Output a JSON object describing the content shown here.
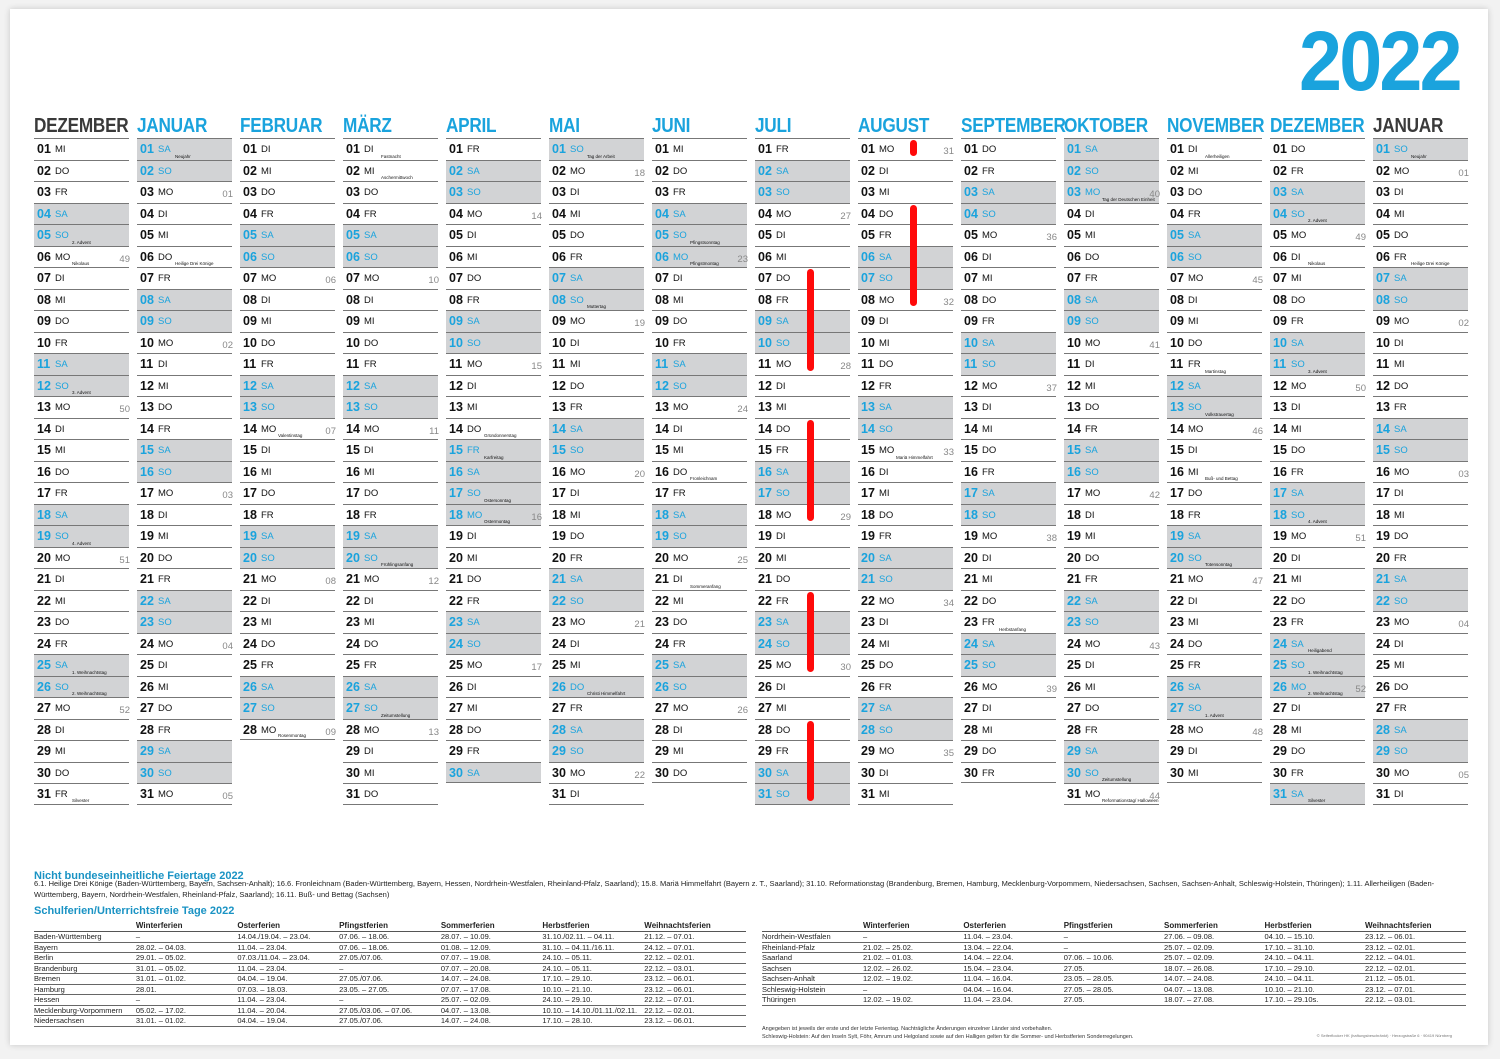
{
  "year": "2022",
  "accent_color": "#1aa3dd",
  "weekend_bg": "#d2d3d5",
  "weekday_names": [
    "MO",
    "DI",
    "MI",
    "DO",
    "FR",
    "SA",
    "SO"
  ],
  "months": [
    {
      "name": "DEZEMBER",
      "days": 31,
      "first_weekday": 2,
      "grey": true,
      "kw": {
        "6": "49",
        "13": "50",
        "20": "51",
        "27": "52"
      },
      "holidays": {
        "5": "2. Advent",
        "6": "Nikolaus",
        "12": "3. Advent",
        "19": "4. Advent",
        "25": "1. Weihnachtstag",
        "26": "2. Weihnachtstag",
        "31": "Silvester"
      }
    },
    {
      "name": "JANUAR",
      "days": 31,
      "first_weekday": 5,
      "grey": false,
      "kw": {
        "3": "01",
        "10": "02",
        "17": "03",
        "24": "04",
        "31": "05"
      },
      "holidays": {
        "1": "Neujahr",
        "6": "Heilige Drei Könige"
      }
    },
    {
      "name": "FEBRUAR",
      "days": 28,
      "first_weekday": 1,
      "grey": false,
      "kw": {
        "7": "06",
        "14": "07",
        "21": "08",
        "28": "09"
      },
      "holidays": {
        "14": "Valentinstag",
        "28": "Rosenmontag"
      }
    },
    {
      "name": "MÄRZ",
      "days": 31,
      "first_weekday": 1,
      "grey": false,
      "kw": {
        "7": "10",
        "14": "11",
        "21": "12",
        "28": "13"
      },
      "holidays": {
        "1": "Fastnacht",
        "2": "Aschermittwoch",
        "20": "Frühlingsanfang",
        "27": "Zeitumstellung"
      }
    },
    {
      "name": "APRIL",
      "days": 30,
      "first_weekday": 4,
      "grey": false,
      "kw": {
        "4": "14",
        "11": "15",
        "18": "16",
        "25": "17"
      },
      "holidays": {
        "14": "Gründonnerstag",
        "15": "Karfreitag",
        "17": "Ostersonntag",
        "18": "Ostermontag"
      }
    },
    {
      "name": "MAI",
      "days": 31,
      "first_weekday": 6,
      "grey": false,
      "kw": {
        "2": "18",
        "9": "19",
        "16": "20",
        "23": "21",
        "30": "22"
      },
      "holidays": {
        "1": "Tag der Arbeit",
        "8": "Muttertag",
        "26": "Christi Himmelfahrt"
      }
    },
    {
      "name": "JUNI",
      "days": 30,
      "first_weekday": 2,
      "grey": false,
      "kw": {
        "6": "23",
        "13": "24",
        "20": "25",
        "27": "26"
      },
      "holidays": {
        "5": "Pfingstsonntag",
        "6": "Pfingstmontag",
        "16": "Fronleichnam",
        "21": "Sommeranfang"
      }
    },
    {
      "name": "JULI",
      "days": 31,
      "first_weekday": 4,
      "grey": false,
      "kw": {
        "4": "27",
        "11": "28",
        "18": "29",
        "25": "30"
      },
      "holidays": {}
    },
    {
      "name": "AUGUST",
      "days": 31,
      "first_weekday": 0,
      "grey": false,
      "kw": {
        "1": "31",
        "8": "32",
        "15": "33",
        "22": "34",
        "29": "35"
      },
      "holidays": {
        "15": "Mariä Himmelfahrt"
      }
    },
    {
      "name": "SEPTEMBER",
      "days": 30,
      "first_weekday": 3,
      "grey": false,
      "kw": {
        "5": "36",
        "12": "37",
        "19": "38",
        "26": "39"
      },
      "holidays": {
        "23": "Herbstanfang"
      }
    },
    {
      "name": "OKTOBER",
      "days": 31,
      "first_weekday": 5,
      "grey": false,
      "kw": {
        "3": "40",
        "10": "41",
        "17": "42",
        "24": "43",
        "31": "44"
      },
      "holidays": {
        "3": "Tag der Deutschen Einheit",
        "30": "Zeitumstellung",
        "31": "Reformationstag/ Halloween"
      }
    },
    {
      "name": "NOVEMBER",
      "days": 30,
      "first_weekday": 1,
      "grey": false,
      "kw": {
        "7": "45",
        "14": "46",
        "21": "47",
        "28": "48"
      },
      "holidays": {
        "1": "Allerheiligen",
        "11": "Martinstag",
        "13": "Volkstrauertag",
        "16": "Buß- und Bettag",
        "20": "Totensonntag",
        "27": "1. Advent"
      }
    },
    {
      "name": "DEZEMBER",
      "days": 31,
      "first_weekday": 3,
      "grey": false,
      "kw": {
        "5": "49",
        "12": "50",
        "19": "51",
        "26": "52"
      },
      "holidays": {
        "4": "2. Advent",
        "6": "Nikolaus",
        "11": "3. Advent",
        "18": "4. Advent",
        "24": "Heiligabend",
        "25": "1. Weihnachtstag",
        "26": "2. Weihnachtstag",
        "31": "Silvester"
      }
    },
    {
      "name": "JANUAR",
      "days": 31,
      "first_weekday": 6,
      "grey": true,
      "kw": {
        "2": "01",
        "9": "02",
        "16": "03",
        "23": "04",
        "30": "05"
      },
      "holidays": {
        "1": "Neujahr",
        "6": "Heilige Drei Könige"
      }
    }
  ],
  "red_marks": [
    {
      "month": 8,
      "from": 1,
      "to": 1
    },
    {
      "month": 8,
      "from": 4,
      "to": 8
    },
    {
      "month": 7,
      "from": 7,
      "to": 11
    },
    {
      "month": 7,
      "from": 14,
      "to": 18
    },
    {
      "month": 7,
      "from": 22,
      "to": 25
    },
    {
      "month": 7,
      "from": 28,
      "to": 31
    }
  ],
  "feiertage": {
    "title": "Nicht bundeseinheitliche Feiertage 2022",
    "text": "6.1. Heilige Drei Könige (Baden-Württemberg, Bayern, Sachsen-Anhalt); 16.6. Fronleichnam (Baden-Württemberg, Bayern, Hessen, Nordrhein-Westfalen, Rheinland-Pfalz, Saarland); 15.8. Mariä Himmelfahrt (Bayern z. T., Saarland); 31.10. Reformationstag (Brandenburg, Bremen, Hamburg, Mecklenburg-Vorpommern, Niedersachsen, Sachsen, Sachsen-Anhalt, Schleswig-Holstein, Thüringen); 1.11. Allerheiligen (Baden-Württemberg, Bayern, Nordrhein-Westfalen, Rheinland-Pfalz, Saarland); 16.11. Buß- und Bettag (Sachsen)"
  },
  "schulferien": {
    "title": "Schulferien/Unterrichtsfreie Tage 2022",
    "columns": [
      "",
      "Winterferien",
      "Osterferien",
      "Pfingstferien",
      "Sommerferien",
      "Herbstferien",
      "Weihnachtsferien"
    ],
    "left_rows": [
      [
        "Baden-Württemberg",
        "–",
        "14.04./19.04. – 23.04.",
        "07.06. – 18.06.",
        "28.07. – 10.09.",
        "31.10./02.11. – 04.11.",
        "21.12. – 07.01."
      ],
      [
        "Bayern",
        "28.02. – 04.03.",
        "11.04. – 23.04.",
        "07.06. – 18.06.",
        "01.08. – 12.09.",
        "31.10. – 04.11./16.11.",
        "24.12. – 07.01."
      ],
      [
        "Berlin",
        "29.01. – 05.02.",
        "07.03./11.04. – 23.04.",
        "27.05./07.06.",
        "07.07. – 19.08.",
        "24.10. – 05.11.",
        "22.12. – 02.01."
      ],
      [
        "Brandenburg",
        "31.01. – 05.02.",
        "11.04. – 23.04.",
        "–",
        "07.07. – 20.08.",
        "24.10. – 05.11.",
        "22.12. – 03.01."
      ],
      [
        "Bremen",
        "31.01. – 01.02.",
        "04.04. – 19.04.",
        "27.05./07.06.",
        "14.07. – 24.08.",
        "17.10. – 29.10.",
        "23.12. – 06.01."
      ],
      [
        "Hamburg",
        "28.01.",
        "07.03. – 18.03.",
        "23.05. – 27.05.",
        "07.07. – 17.08.",
        "10.10. – 21.10.",
        "23.12. – 06.01."
      ],
      [
        "Hessen",
        "–",
        "11.04. – 23.04.",
        "–",
        "25.07. – 02.09.",
        "24.10. – 29.10.",
        "22.12. – 07.01."
      ],
      [
        "Mecklenburg-Vorpommern",
        "05.02. – 17.02.",
        "11.04. – 20.04.",
        "27.05./03.06. – 07.06.",
        "04.07. – 13.08.",
        "10.10. – 14.10./01.11./02.11.",
        "22.12. – 02.01."
      ],
      [
        "Niedersachsen",
        "31.01. – 01.02.",
        "04.04. – 19.04.",
        "27.05./07.06.",
        "14.07. – 24.08.",
        "17.10. – 28.10.",
        "23.12. – 06.01."
      ]
    ],
    "right_rows": [
      [
        "Nordrhein-Westfalen",
        "–",
        "11.04. – 23.04.",
        "–",
        "27.06. – 09.08.",
        "04.10. – 15.10.",
        "23.12. – 06.01."
      ],
      [
        "Rheinland-Pfalz",
        "21.02. – 25.02.",
        "13.04. – 22.04.",
        "–",
        "25.07. – 02.09.",
        "17.10. – 31.10.",
        "23.12. – 02.01."
      ],
      [
        "Saarland",
        "21.02. – 01.03.",
        "14.04. – 22.04.",
        "07.06. – 10.06.",
        "25.07. – 02.09.",
        "24.10. – 04.11.",
        "22.12. – 04.01."
      ],
      [
        "Sachsen",
        "12.02. – 26.02.",
        "15.04. – 23.04.",
        "27.05.",
        "18.07. – 26.08.",
        "17.10. – 29.10.",
        "22.12. – 02.01."
      ],
      [
        "Sachsen-Anhalt",
        "12.02. – 19.02.",
        "11.04. – 16.04.",
        "23.05. – 28.05.",
        "14.07. – 24.08.",
        "24.10. – 04.11.",
        "21.12. – 05.01."
      ],
      [
        "Schleswig-Holstein",
        "–",
        "04.04. – 16.04.",
        "27.05. – 28.05.",
        "04.07. – 13.08.",
        "10.10. – 21.10.",
        "23.12. – 07.01."
      ],
      [
        "Thüringen",
        "12.02. – 19.02.",
        "11.04. – 23.04.",
        "27.05.",
        "18.07. – 27.08.",
        "17.10. – 29.10s.",
        "22.12. – 03.01."
      ]
    ]
  },
  "notes": {
    "line1": "Angegeben ist jeweils der erste und der letzte Ferientag. Nachträgliche Änderungen einzelner Länder sind vorbehalten.",
    "line2": "Schleswig-Holstein: Auf den Inseln Sylt, Föhr, Amrum und Helgoland sowie auf den Halligen gelten für die Sommer- und Herbstferien Sonderregelungen.",
    "copyright": "© Seiferflocker HK (haftungsbeschränkt) · Herzogstraße 6 · 90419 Nürnberg"
  }
}
